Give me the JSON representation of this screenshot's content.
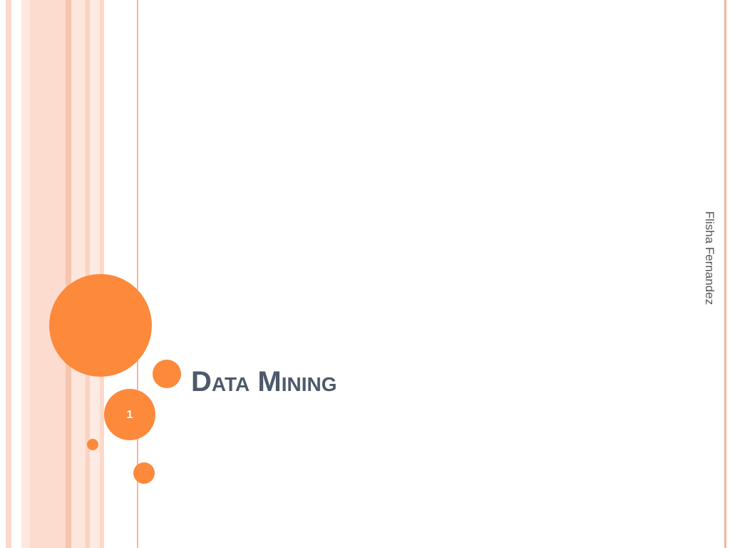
{
  "slide": {
    "title": "Data Mining",
    "author": "Flisha Fernandez",
    "slide_number": "1"
  }
}
